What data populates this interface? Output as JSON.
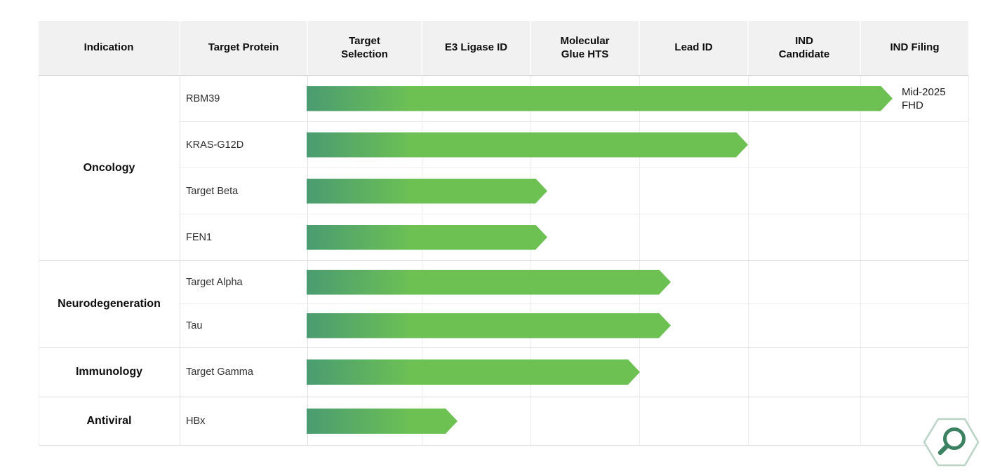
{
  "table": {
    "columns": [
      {
        "label": "Indication"
      },
      {
        "label": "Target Protein"
      },
      {
        "label": "Target\nSelection"
      },
      {
        "label": "E3 Ligase ID"
      },
      {
        "label": "Molecular\nGlue HTS"
      },
      {
        "label": "Lead ID"
      },
      {
        "label": "IND\nCandidate"
      },
      {
        "label": "IND Filing"
      }
    ]
  },
  "chart_data": {
    "type": "bar",
    "orientation": "horizontal",
    "stages": [
      "Target Selection",
      "E3 Ligase ID",
      "Molecular Glue HTS",
      "Lead ID",
      "IND Candidate",
      "IND Filing"
    ],
    "stage_scale": [
      0,
      6
    ],
    "groups": [
      {
        "indication": "Oncology",
        "programs": [
          {
            "target": "RBM39",
            "stage_progress": 5.31,
            "annotation": "Mid-2025 FHD"
          },
          {
            "target": "KRAS-G12D",
            "stage_progress": 4.0
          },
          {
            "target": "Target Beta",
            "stage_progress": 2.18
          },
          {
            "target": "FEN1",
            "stage_progress": 2.18
          }
        ]
      },
      {
        "indication": "Neurodegeneration",
        "programs": [
          {
            "target": "Target Alpha",
            "stage_progress": 3.3
          },
          {
            "target": "Tau",
            "stage_progress": 3.3
          }
        ]
      },
      {
        "indication": "Immunology",
        "programs": [
          {
            "target": "Target Gamma",
            "stage_progress": 3.02
          }
        ]
      },
      {
        "indication": "Antiviral",
        "programs": [
          {
            "target": "HBx",
            "stage_progress": 1.37
          }
        ]
      }
    ]
  },
  "icons": {
    "badge": "magnifier-hexagon-icon"
  },
  "colors": {
    "header_bg": "#f1f1f1",
    "bar_gradient_start": "#4a9b71",
    "bar_gradient_end": "#6dc153",
    "badge_outline": "#b9d3c5",
    "badge_glyph": "#3c8161"
  }
}
